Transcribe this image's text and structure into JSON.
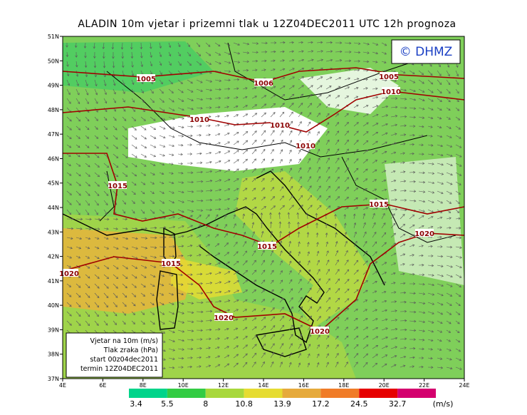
{
  "header": {
    "title": "ALADIN 10m vjetar i prizemni tlak u 12Z04DEC2011 UTC 12h prognoza"
  },
  "logo": "© DHMZ",
  "map": {
    "lat_labels": [
      "37N",
      "38N",
      "39N",
      "40N",
      "41N",
      "42N",
      "43N",
      "44N",
      "45N",
      "46N",
      "47N",
      "48N",
      "49N",
      "50N",
      "51N"
    ],
    "lon_labels": [
      "4E",
      "6E",
      "8E",
      "10E",
      "12E",
      "14E",
      "16E",
      "18E",
      "20E",
      "22E",
      "24E"
    ],
    "isobar_labels": [
      "1005",
      "1006",
      "1005",
      "1010",
      "1010",
      "1010",
      "1010",
      "1015",
      "1015",
      "1015",
      "1015",
      "1020",
      "1020",
      "1020",
      "1020"
    ]
  },
  "legend": {
    "lines": [
      "Vjetar na 10m (m/s)",
      "Tlak zraka (hPa)",
      "start 00z04dec2011",
      "termin 12Z04DEC2011"
    ]
  },
  "colorbar": {
    "values": [
      3.4,
      5.5,
      8,
      10.8,
      13.9,
      17.2,
      24.5,
      32.7
    ],
    "unit": "(m/s)"
  }
}
